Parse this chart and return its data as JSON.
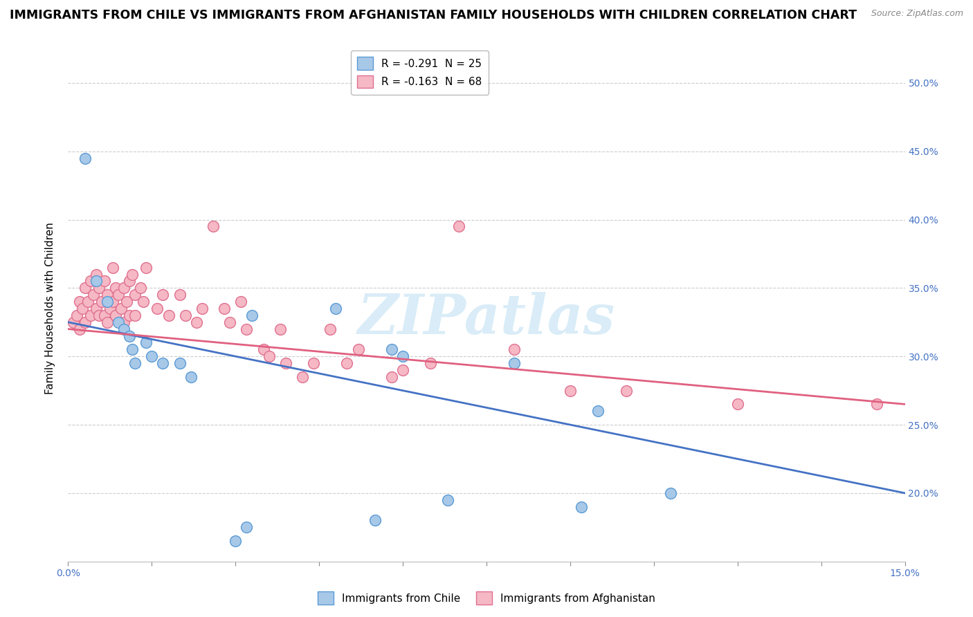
{
  "title": "IMMIGRANTS FROM CHILE VS IMMIGRANTS FROM AFGHANISTAN FAMILY HOUSEHOLDS WITH CHILDREN CORRELATION CHART",
  "source": "Source: ZipAtlas.com",
  "xlim": [
    0.0,
    15.0
  ],
  "ylim": [
    15.0,
    52.0
  ],
  "legend_entries": [
    {
      "label": "R = -0.291  N = 25"
    },
    {
      "label": "R = -0.163  N = 68"
    }
  ],
  "chile_scatter": [
    [
      0.3,
      44.5
    ],
    [
      0.5,
      35.5
    ],
    [
      0.7,
      34.0
    ],
    [
      0.9,
      32.5
    ],
    [
      1.0,
      32.0
    ],
    [
      1.1,
      31.5
    ],
    [
      1.15,
      30.5
    ],
    [
      1.2,
      29.5
    ],
    [
      1.4,
      31.0
    ],
    [
      1.5,
      30.0
    ],
    [
      1.7,
      29.5
    ],
    [
      2.0,
      29.5
    ],
    [
      2.2,
      28.5
    ],
    [
      3.3,
      33.0
    ],
    [
      4.8,
      33.5
    ],
    [
      5.8,
      30.5
    ],
    [
      6.0,
      30.0
    ],
    [
      8.0,
      29.5
    ],
    [
      9.5,
      26.0
    ],
    [
      10.8,
      20.0
    ],
    [
      3.0,
      16.5
    ],
    [
      3.2,
      17.5
    ],
    [
      5.5,
      18.0
    ],
    [
      6.8,
      19.5
    ],
    [
      9.2,
      19.0
    ]
  ],
  "afghanistan_scatter": [
    [
      0.1,
      32.5
    ],
    [
      0.15,
      33.0
    ],
    [
      0.2,
      34.0
    ],
    [
      0.2,
      32.0
    ],
    [
      0.25,
      33.5
    ],
    [
      0.3,
      35.0
    ],
    [
      0.3,
      32.5
    ],
    [
      0.35,
      34.0
    ],
    [
      0.4,
      35.5
    ],
    [
      0.4,
      33.0
    ],
    [
      0.45,
      34.5
    ],
    [
      0.5,
      36.0
    ],
    [
      0.5,
      33.5
    ],
    [
      0.55,
      35.0
    ],
    [
      0.55,
      33.0
    ],
    [
      0.6,
      34.0
    ],
    [
      0.65,
      35.5
    ],
    [
      0.65,
      33.0
    ],
    [
      0.7,
      34.5
    ],
    [
      0.7,
      32.5
    ],
    [
      0.75,
      33.5
    ],
    [
      0.8,
      36.5
    ],
    [
      0.8,
      34.0
    ],
    [
      0.85,
      35.0
    ],
    [
      0.85,
      33.0
    ],
    [
      0.9,
      34.5
    ],
    [
      0.95,
      33.5
    ],
    [
      1.0,
      35.0
    ],
    [
      1.0,
      32.5
    ],
    [
      1.05,
      34.0
    ],
    [
      1.1,
      35.5
    ],
    [
      1.1,
      33.0
    ],
    [
      1.15,
      36.0
    ],
    [
      1.2,
      34.5
    ],
    [
      1.2,
      33.0
    ],
    [
      1.3,
      35.0
    ],
    [
      1.35,
      34.0
    ],
    [
      1.4,
      36.5
    ],
    [
      1.6,
      33.5
    ],
    [
      1.7,
      34.5
    ],
    [
      1.8,
      33.0
    ],
    [
      2.0,
      34.5
    ],
    [
      2.1,
      33.0
    ],
    [
      2.3,
      32.5
    ],
    [
      2.4,
      33.5
    ],
    [
      2.6,
      39.5
    ],
    [
      2.8,
      33.5
    ],
    [
      2.9,
      32.5
    ],
    [
      3.1,
      34.0
    ],
    [
      3.2,
      32.0
    ],
    [
      3.5,
      30.5
    ],
    [
      3.6,
      30.0
    ],
    [
      3.8,
      32.0
    ],
    [
      3.9,
      29.5
    ],
    [
      4.2,
      28.5
    ],
    [
      4.4,
      29.5
    ],
    [
      4.7,
      32.0
    ],
    [
      5.0,
      29.5
    ],
    [
      5.2,
      30.5
    ],
    [
      5.8,
      28.5
    ],
    [
      6.0,
      29.0
    ],
    [
      6.5,
      29.5
    ],
    [
      7.0,
      39.5
    ],
    [
      8.0,
      30.5
    ],
    [
      9.0,
      27.5
    ],
    [
      10.0,
      27.5
    ],
    [
      12.0,
      26.5
    ],
    [
      14.5,
      26.5
    ]
  ],
  "chile_color": "#a8c8e8",
  "chile_edge_color": "#5b9bd5",
  "afghanistan_color": "#f5b8c4",
  "afghanistan_edge_color": "#e07090",
  "chile_line_color": "#4472c4",
  "afghanistan_line_color": "#e06080",
  "background_color": "#ffffff",
  "grid_color": "#cccccc",
  "watermark": "ZIPatlas",
  "title_fontsize": 12.5,
  "axis_label_fontsize": 11,
  "tick_fontsize": 10,
  "legend_fontsize": 11,
  "y_right_ticks": [
    20.0,
    25.0,
    30.0,
    35.0,
    40.0,
    45.0,
    50.0
  ],
  "y_right_tick_labels": [
    "20.0%",
    "25.0%",
    "30.0%",
    "35.0%",
    "40.0%",
    "45.0%",
    "50.0%"
  ],
  "chile_regression": [
    0.0,
    32.5,
    15.0,
    20.0
  ],
  "afghanistan_regression": [
    0.0,
    32.0,
    15.0,
    26.5
  ]
}
